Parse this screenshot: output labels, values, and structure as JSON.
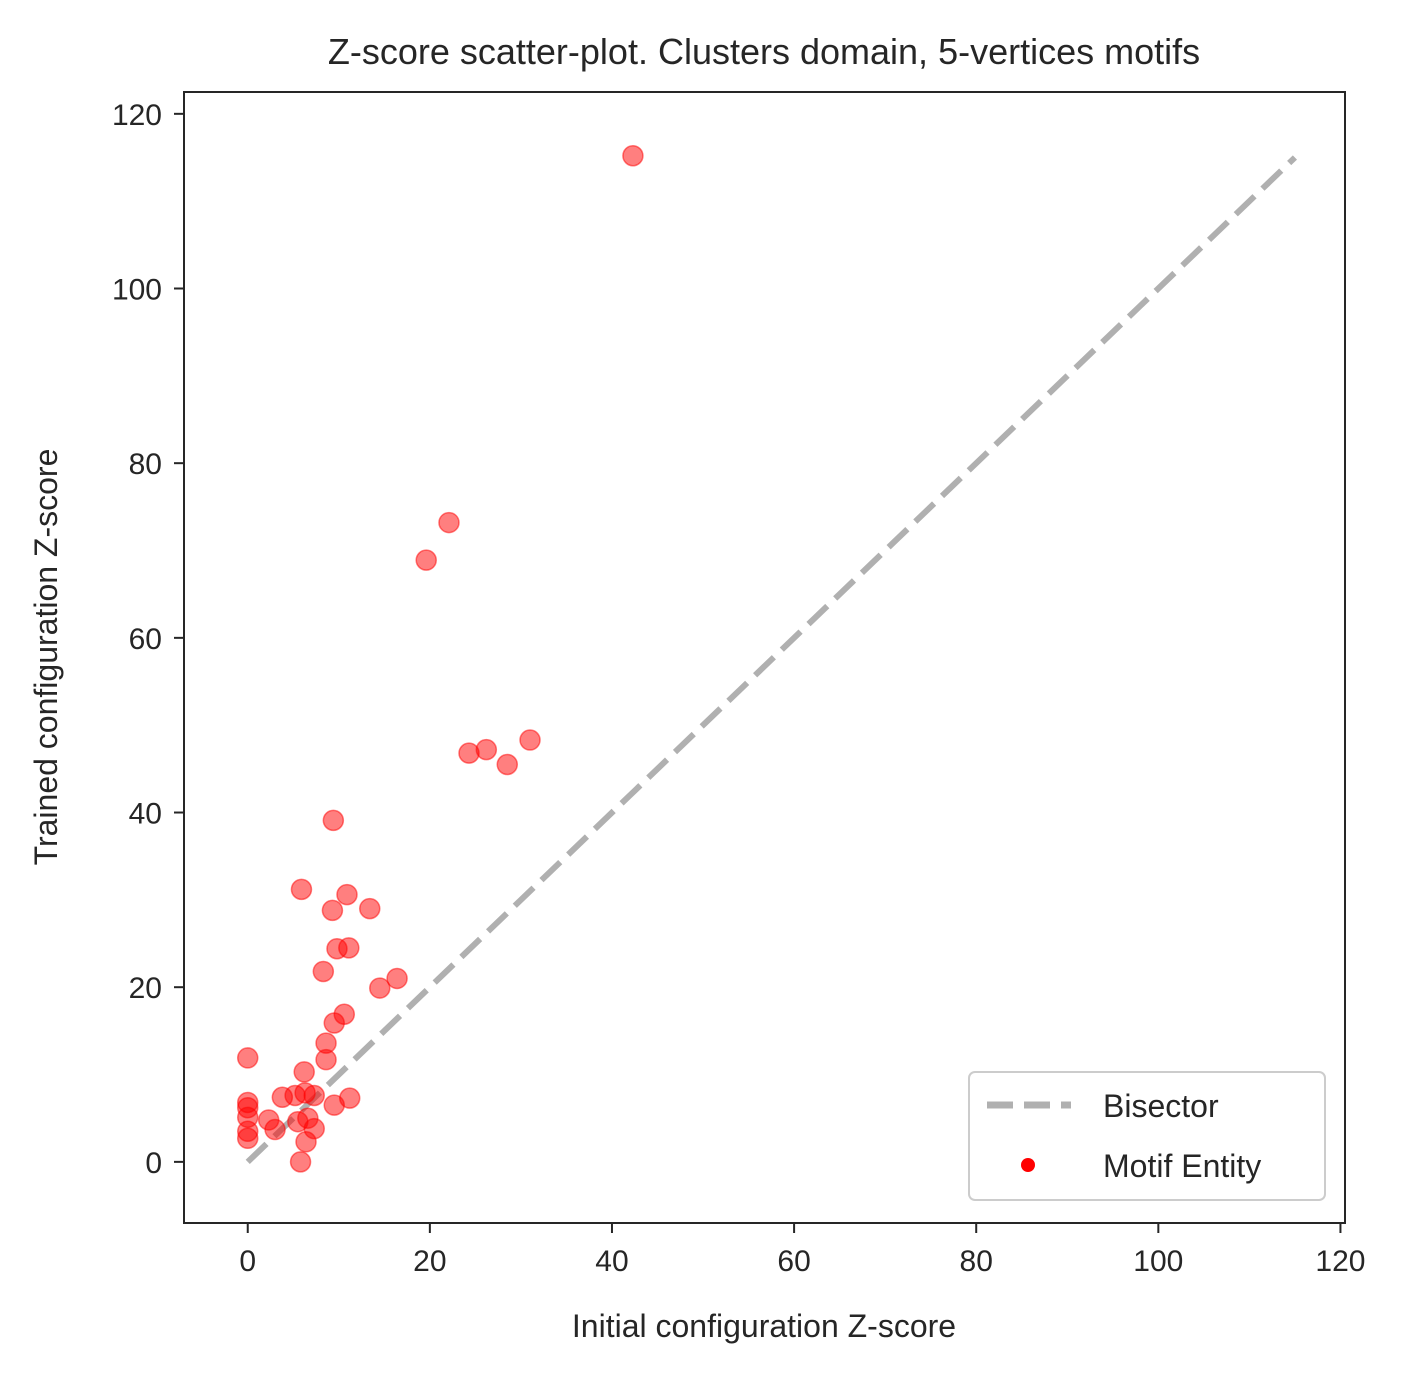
{
  "chart_data": {
    "type": "scatter",
    "title": "Z-score scatter-plot. Clusters domain, 5-vertices motifs",
    "xlabel": "Initial configuration Z-score",
    "ylabel": "Trained configuration Z-score",
    "xlim": [
      -7,
      120.5
    ],
    "ylim": [
      -7,
      122.5
    ],
    "xticks": [
      0,
      20,
      40,
      60,
      80,
      100,
      120
    ],
    "yticks": [
      0,
      20,
      40,
      60,
      80,
      100,
      120
    ],
    "xtick_labels": [
      "0",
      "20",
      "40",
      "60",
      "80",
      "100",
      "120"
    ],
    "ytick_labels": [
      "0",
      "20",
      "40",
      "60",
      "80",
      "100",
      "120"
    ],
    "grid": false,
    "legend_position": "lower-right",
    "series": [
      {
        "name": "Bisector",
        "kind": "line",
        "style": "dashed",
        "color": "#b0b0b0",
        "x": [
          0,
          115
        ],
        "y": [
          0,
          115
        ]
      },
      {
        "name": "Motif Entity",
        "kind": "scatter",
        "color": "#ff0000",
        "alpha": 0.5,
        "points": [
          [
            42.3,
            115.2
          ],
          [
            22.1,
            73.2
          ],
          [
            19.6,
            68.9
          ],
          [
            24.3,
            46.8
          ],
          [
            26.2,
            47.2
          ],
          [
            28.5,
            45.5
          ],
          [
            31.0,
            48.3
          ],
          [
            9.4,
            39.1
          ],
          [
            5.9,
            31.2
          ],
          [
            10.9,
            30.6
          ],
          [
            13.4,
            29.0
          ],
          [
            9.3,
            28.8
          ],
          [
            9.8,
            24.4
          ],
          [
            11.1,
            24.5
          ],
          [
            8.3,
            21.8
          ],
          [
            16.4,
            21.0
          ],
          [
            14.5,
            19.9
          ],
          [
            10.6,
            16.9
          ],
          [
            9.5,
            15.9
          ],
          [
            8.6,
            13.6
          ],
          [
            8.6,
            11.7
          ],
          [
            0.0,
            11.9
          ],
          [
            6.2,
            10.3
          ],
          [
            0.0,
            6.8
          ],
          [
            0.0,
            6.2
          ],
          [
            0.0,
            5.1
          ],
          [
            0.0,
            3.5
          ],
          [
            0.0,
            2.7
          ],
          [
            2.3,
            4.8
          ],
          [
            3.0,
            3.7
          ],
          [
            3.8,
            7.4
          ],
          [
            5.2,
            7.6
          ],
          [
            5.5,
            4.6
          ],
          [
            6.3,
            7.9
          ],
          [
            7.3,
            7.6
          ],
          [
            6.6,
            5.0
          ],
          [
            7.3,
            3.8
          ],
          [
            6.4,
            2.3
          ],
          [
            5.8,
            0.0
          ],
          [
            9.5,
            6.5
          ],
          [
            11.2,
            7.3
          ]
        ]
      }
    ]
  }
}
